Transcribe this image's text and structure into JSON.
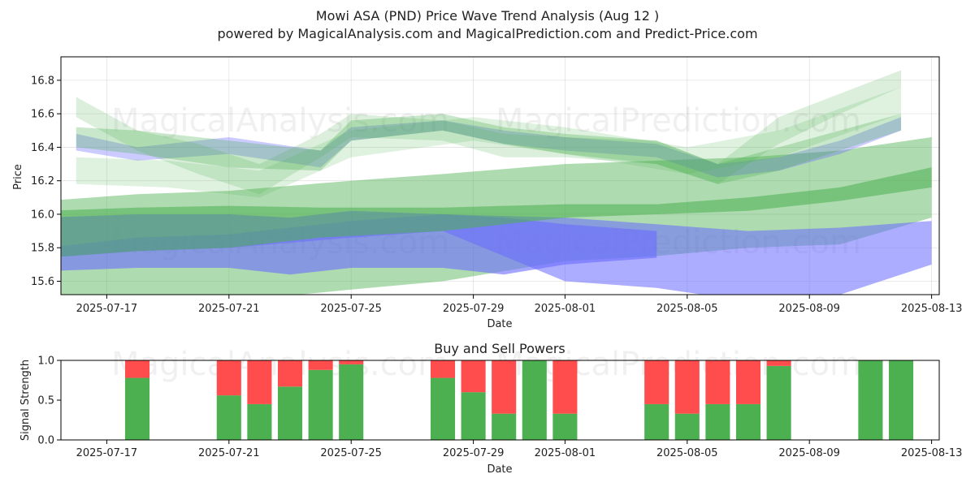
{
  "chart_data": [
    {
      "type": "area",
      "title": "Mowi ASA (PND) Price Wave Trend Analysis (Aug 12 )",
      "subtitle": "powered by MagicalAnalysis.com and MagicalPrediction.com and Predict-Price.com",
      "xlabel": "Date",
      "ylabel": "Price",
      "ylim": [
        15.52,
        16.94
      ],
      "xlim": [
        "2025-07-15T12:00",
        "2025-08-13T06:00"
      ],
      "x_ticks": [
        "2025-07-17",
        "2025-07-21",
        "2025-07-25",
        "2025-07-29",
        "2025-08-01",
        "2025-08-05",
        "2025-08-09",
        "2025-08-13"
      ],
      "y_ticks": [
        15.6,
        15.8,
        16.0,
        16.2,
        16.4,
        16.6,
        16.8
      ],
      "grid": true,
      "watermarks": [
        "MagicalAnalysis.com",
        "MagicalPrediction.com",
        "MagicalAnalysis.com",
        "MagicalPrediction.com"
      ],
      "colors": {
        "green": "#4caf50",
        "blue": "#6a6aff"
      },
      "bands": [
        {
          "color": "green",
          "opacity": 0.45,
          "x": [
            "2025-07-15",
            "2025-07-18",
            "2025-07-21",
            "2025-07-25",
            "2025-07-28",
            "2025-08-01",
            "2025-08-04",
            "2025-08-07",
            "2025-08-10",
            "2025-08-13"
          ],
          "upper": [
            16.08,
            16.12,
            16.14,
            16.2,
            16.24,
            16.3,
            16.32,
            16.34,
            16.38,
            16.46
          ],
          "lower": [
            15.5,
            15.48,
            15.48,
            15.55,
            15.6,
            15.72,
            15.75,
            15.8,
            15.82,
            15.98
          ]
        },
        {
          "color": "blue",
          "opacity": 0.55,
          "x": [
            "2025-07-15",
            "2025-07-18",
            "2025-07-21",
            "2025-07-25",
            "2025-07-28",
            "2025-08-01",
            "2025-08-04",
            "2025-08-07",
            "2025-08-10",
            "2025-08-13"
          ],
          "upper": [
            15.8,
            15.86,
            15.88,
            15.96,
            16.0,
            15.98,
            15.94,
            15.9,
            15.92,
            15.96
          ],
          "lower": [
            15.74,
            15.78,
            15.8,
            15.86,
            15.9,
            15.6,
            15.56,
            15.48,
            15.52,
            15.7
          ]
        },
        {
          "color": "blue",
          "opacity": 0.6,
          "x": [
            "2025-07-15",
            "2025-07-18",
            "2025-07-21",
            "2025-07-23",
            "2025-07-25",
            "2025-07-28",
            "2025-07-30",
            "2025-08-01",
            "2025-08-04"
          ],
          "upper": [
            15.98,
            16.0,
            16.0,
            15.98,
            16.02,
            16.0,
            15.98,
            15.94,
            15.9
          ],
          "lower": [
            15.66,
            15.68,
            15.68,
            15.64,
            15.68,
            15.68,
            15.64,
            15.7,
            15.74
          ]
        },
        {
          "color": "green",
          "opacity": 0.55,
          "x": [
            "2025-07-15",
            "2025-07-18",
            "2025-07-21",
            "2025-07-24",
            "2025-07-28",
            "2025-08-01",
            "2025-08-04",
            "2025-08-07",
            "2025-08-10",
            "2025-08-13"
          ],
          "upper": [
            16.02,
            16.04,
            16.05,
            16.04,
            16.04,
            16.06,
            16.06,
            16.1,
            16.16,
            16.28
          ],
          "lower": [
            15.74,
            15.78,
            15.8,
            15.86,
            15.9,
            15.98,
            16.0,
            16.02,
            16.08,
            16.16
          ]
        },
        {
          "color": "blue",
          "opacity": 0.35,
          "x": [
            "2025-07-16",
            "2025-07-18",
            "2025-07-21",
            "2025-07-24",
            "2025-07-25",
            "2025-07-28",
            "2025-07-30",
            "2025-08-01",
            "2025-08-04",
            "2025-08-06",
            "2025-08-08",
            "2025-08-10",
            "2025-08-12"
          ],
          "upper": [
            16.48,
            16.4,
            16.46,
            16.38,
            16.52,
            16.56,
            16.5,
            16.46,
            16.42,
            16.3,
            16.34,
            16.44,
            16.58
          ],
          "lower": [
            16.38,
            16.32,
            16.36,
            16.28,
            16.44,
            16.5,
            16.42,
            16.38,
            16.34,
            16.22,
            16.26,
            16.36,
            16.5
          ]
        },
        {
          "color": "green",
          "opacity": 0.3,
          "x": [
            "2025-07-16",
            "2025-07-18",
            "2025-07-21",
            "2025-07-24",
            "2025-07-25",
            "2025-07-28",
            "2025-07-30",
            "2025-08-01",
            "2025-08-04",
            "2025-08-06",
            "2025-08-08",
            "2025-08-10",
            "2025-08-12"
          ],
          "upper": [
            16.52,
            16.5,
            16.44,
            16.38,
            16.56,
            16.6,
            16.52,
            16.48,
            16.44,
            16.3,
            16.4,
            16.5,
            16.6
          ],
          "lower": [
            16.4,
            16.36,
            16.28,
            16.26,
            16.44,
            16.5,
            16.42,
            16.36,
            16.3,
            16.18,
            16.26,
            16.38,
            16.5
          ]
        },
        {
          "color": "green",
          "opacity": 0.2,
          "x": [
            "2025-07-16",
            "2025-07-18",
            "2025-07-20",
            "2025-07-22",
            "2025-07-24",
            "2025-07-25",
            "2025-07-28",
            "2025-07-30",
            "2025-08-01",
            "2025-08-04",
            "2025-08-06",
            "2025-08-08",
            "2025-08-10",
            "2025-08-12"
          ],
          "upper": [
            16.7,
            16.5,
            16.42,
            16.3,
            16.48,
            16.6,
            16.56,
            16.48,
            16.46,
            16.44,
            16.3,
            16.58,
            16.72,
            16.86
          ],
          "lower": [
            16.58,
            16.38,
            16.24,
            16.12,
            16.34,
            16.46,
            16.44,
            16.34,
            16.34,
            16.3,
            16.18,
            16.42,
            16.6,
            16.76
          ]
        },
        {
          "color": "green",
          "opacity": 0.18,
          "x": [
            "2025-07-16",
            "2025-07-19",
            "2025-07-22",
            "2025-07-25",
            "2025-07-29",
            "2025-08-01",
            "2025-08-05",
            "2025-08-08",
            "2025-08-12"
          ],
          "upper": [
            16.34,
            16.32,
            16.26,
            16.5,
            16.58,
            16.52,
            16.4,
            16.5,
            16.76
          ],
          "lower": [
            16.18,
            16.16,
            16.1,
            16.34,
            16.44,
            16.36,
            16.24,
            16.34,
            16.6
          ]
        }
      ]
    },
    {
      "type": "bar",
      "title": "Buy and Sell Powers",
      "xlabel": "Date",
      "ylabel": "Signal Strength",
      "ylim": [
        0,
        1.0
      ],
      "y_ticks": [
        0.0,
        0.5,
        1.0
      ],
      "xlim": [
        "2025-07-15T12:00",
        "2025-08-13T06:00"
      ],
      "x_ticks": [
        "2025-07-17",
        "2025-07-21",
        "2025-07-25",
        "2025-07-29",
        "2025-08-01",
        "2025-08-05",
        "2025-08-09",
        "2025-08-13"
      ],
      "colors": {
        "buy": "#4caf50",
        "sell": "#ff4c4c"
      },
      "dates": [
        "2025-07-18",
        "2025-07-21",
        "2025-07-22",
        "2025-07-23",
        "2025-07-24",
        "2025-07-25",
        "2025-07-28",
        "2025-07-29",
        "2025-07-30",
        "2025-07-31",
        "2025-08-01",
        "2025-08-04",
        "2025-08-05",
        "2025-08-06",
        "2025-08-07",
        "2025-08-08",
        "2025-08-11",
        "2025-08-12"
      ],
      "buy": [
        0.78,
        0.56,
        0.45,
        0.67,
        0.88,
        0.95,
        0.78,
        0.6,
        0.33,
        1.0,
        0.33,
        0.45,
        0.33,
        0.45,
        0.45,
        0.93,
        1.0,
        1.0
      ],
      "sell": [
        0.22,
        0.44,
        0.55,
        0.33,
        0.12,
        0.05,
        0.22,
        0.4,
        0.67,
        0.0,
        0.67,
        0.55,
        0.67,
        0.55,
        0.55,
        0.07,
        0.0,
        0.0
      ]
    }
  ]
}
